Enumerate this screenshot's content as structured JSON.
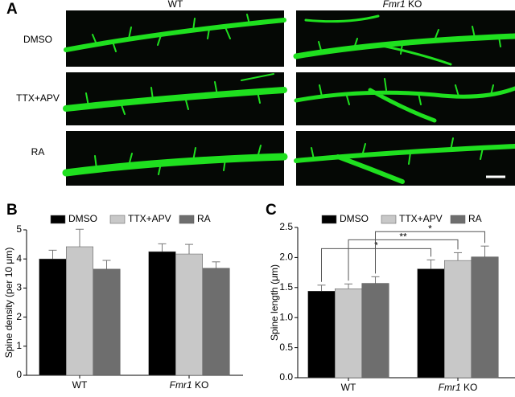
{
  "panel_a": {
    "label": "A",
    "columns": [
      "WT",
      "Fmr1 KO"
    ],
    "rows": [
      "DMSO",
      "TTX+APV",
      "RA"
    ]
  },
  "chart_data": [
    {
      "type": "bar",
      "panel": "B",
      "ylabel": "Spine density (per 10 μm)",
      "categories": [
        "WT",
        "Fmr1 KO"
      ],
      "series": [
        {
          "name": "DMSO",
          "color": "#000000",
          "values": [
            4.0,
            4.25
          ],
          "errors": [
            0.3,
            0.27
          ]
        },
        {
          "name": "TTX+APV",
          "color": "#c8c8c8",
          "values": [
            4.42,
            4.17
          ],
          "errors": [
            0.6,
            0.33
          ]
        },
        {
          "name": "RA",
          "color": "#6e6e6e",
          "values": [
            3.65,
            3.68
          ],
          "errors": [
            0.3,
            0.22
          ]
        }
      ],
      "ylim": [
        0,
        5
      ],
      "yticks": [
        0,
        1,
        2,
        3,
        4,
        5
      ]
    },
    {
      "type": "bar",
      "panel": "C",
      "ylabel": "Spine length (μm)",
      "categories": [
        "WT",
        "Fmr1 KO"
      ],
      "series": [
        {
          "name": "DMSO",
          "color": "#000000",
          "values": [
            1.44,
            1.81
          ],
          "errors": [
            0.1,
            0.15
          ]
        },
        {
          "name": "TTX+APV",
          "color": "#c8c8c8",
          "values": [
            1.48,
            1.95
          ],
          "errors": [
            0.08,
            0.13
          ]
        },
        {
          "name": "RA",
          "color": "#6e6e6e",
          "values": [
            1.57,
            2.01
          ],
          "errors": [
            0.11,
            0.18
          ]
        }
      ],
      "annotations": [
        "*",
        "**",
        "*"
      ],
      "ylim": [
        0,
        2.5
      ],
      "yticks": [
        {
          "value": 0,
          "label": "0.0"
        },
        0.5,
        {
          "value": 1,
          "label": "1.0"
        },
        1.5,
        {
          "value": 2,
          "label": "2.0"
        },
        2.5
      ]
    }
  ]
}
